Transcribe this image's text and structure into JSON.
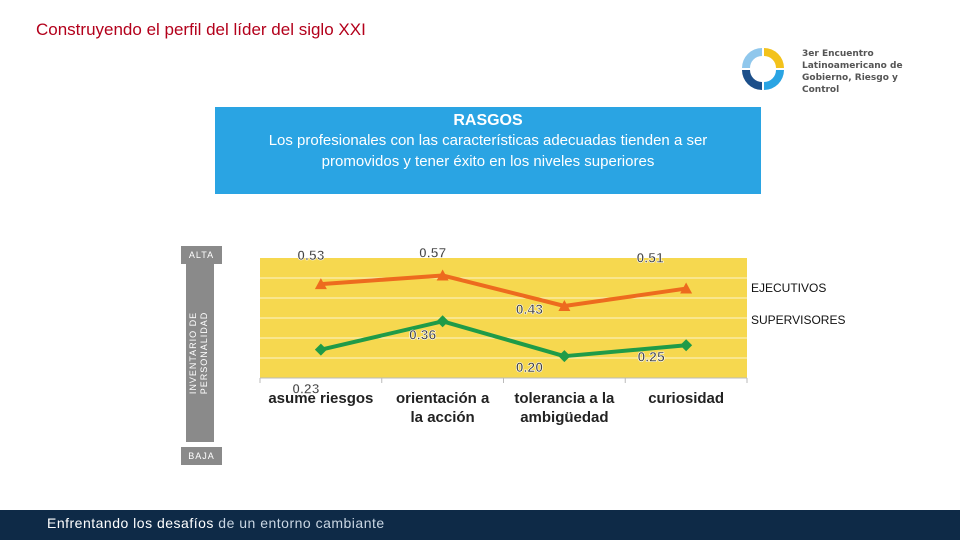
{
  "header": {
    "title": "Construyendo el perfil del líder del siglo XXI"
  },
  "logo": {
    "lines": [
      "3er Encuentro",
      "Latinoamericano de",
      "Gobierno, Riesgo y Control"
    ]
  },
  "banner": {
    "heading": "RASGOS",
    "text": "Los profesionales con las características adecuadas tienden a ser promovidos y tener éxito en los niveles superiores"
  },
  "scale": {
    "top": "ALTA",
    "bottom": "BAJA",
    "label_line1": "INVENTARIO DE",
    "label_line2": "PERSONALIDAD"
  },
  "chart_data": {
    "type": "line",
    "categories": [
      "asume riesgos",
      "orientación a la acción",
      "tolerancia a la ambigüedad",
      "curiosidad"
    ],
    "series": [
      {
        "name": "EJECUTIVOS",
        "values": [
          0.53,
          0.57,
          0.43,
          0.51
        ],
        "labels": [
          "0.53",
          "0.57",
          "0.43",
          "0.51"
        ],
        "color": "#ed6b1e",
        "marker": "triangle"
      },
      {
        "name": "SUPERVISORES",
        "values": [
          0.23,
          0.36,
          0.2,
          0.25
        ],
        "labels": [
          "0.23",
          "0.36",
          "0.20",
          "0.25"
        ],
        "color": "#1f9b48",
        "marker": "diamond"
      }
    ],
    "plot_background": "#f6d84f",
    "grid": true
  },
  "footer": {
    "text_bold": "Enfrentando los desafíos",
    "text_light": " de un entorno cambiante"
  }
}
